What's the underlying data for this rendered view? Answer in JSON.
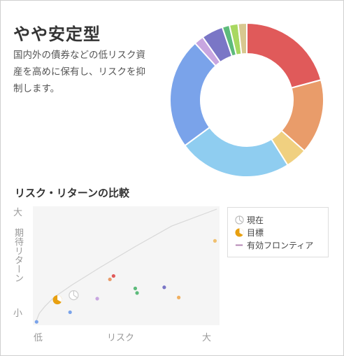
{
  "card": {
    "title": "やや安定型",
    "description": "国内外の債券などの低リスク資産を高めに保有し、リスクを抑制します。"
  },
  "allocation_donut": {
    "segments": [
      {
        "color": "#e05a5a",
        "value": 20.5
      },
      {
        "color": "#e99c6a",
        "value": 15.5
      },
      {
        "color": "#f0d080",
        "value": 4.5
      },
      {
        "color": "#8fcdf0",
        "value": 23.5
      },
      {
        "color": "#7aa3ea",
        "value": 23.0
      },
      {
        "color": "#c8a6e0",
        "value": 2.0
      },
      {
        "color": "#7a76c6",
        "value": 4.5
      },
      {
        "color": "#5dbb7b",
        "value": 1.5
      },
      {
        "color": "#a8d860",
        "value": 1.8
      },
      {
        "color": "#d8c890",
        "value": 1.8
      }
    ]
  },
  "comparison": {
    "section_title": "リスク・リターンの比較",
    "y_axis": {
      "top": "大",
      "middle": "期待リターン",
      "bottom": "小"
    },
    "x_axis": {
      "low": "低",
      "middle": "リスク",
      "high": "大"
    },
    "legend": {
      "current": "現在",
      "target": "目標",
      "frontier": "有効フロンティア"
    }
  },
  "chart_data": {
    "type": "scatter",
    "xlabel": "リスク",
    "ylabel": "期待リターン",
    "xlim": [
      0,
      100
    ],
    "ylim": [
      0,
      100
    ],
    "frontier": [
      [
        0,
        0
      ],
      [
        2,
        8
      ],
      [
        5,
        14
      ],
      [
        10,
        22
      ],
      [
        20,
        33
      ],
      [
        35,
        48
      ],
      [
        55,
        67
      ],
      [
        75,
        85
      ],
      [
        100,
        100
      ]
    ],
    "points": [
      {
        "x": 0.5,
        "y": 0.5,
        "color": "#7aa3ea"
      },
      {
        "x": 19,
        "y": 9,
        "color": "#7aa3ea"
      },
      {
        "x": 34,
        "y": 21,
        "color": "#c8a6e0"
      },
      {
        "x": 41,
        "y": 38,
        "color": "#e99c6a"
      },
      {
        "x": 43,
        "y": 41,
        "color": "#e05a5a"
      },
      {
        "x": 55,
        "y": 30,
        "color": "#5dbb7b"
      },
      {
        "x": 56,
        "y": 26,
        "color": "#5dbb7b"
      },
      {
        "x": 71,
        "y": 31,
        "color": "#7a76c6"
      },
      {
        "x": 79,
        "y": 22,
        "color": "#f0b060"
      },
      {
        "x": 99,
        "y": 72,
        "color": "#f0c070"
      }
    ],
    "current": {
      "x": 21,
      "y": 24
    },
    "target": {
      "x": 12,
      "y": 20
    }
  }
}
